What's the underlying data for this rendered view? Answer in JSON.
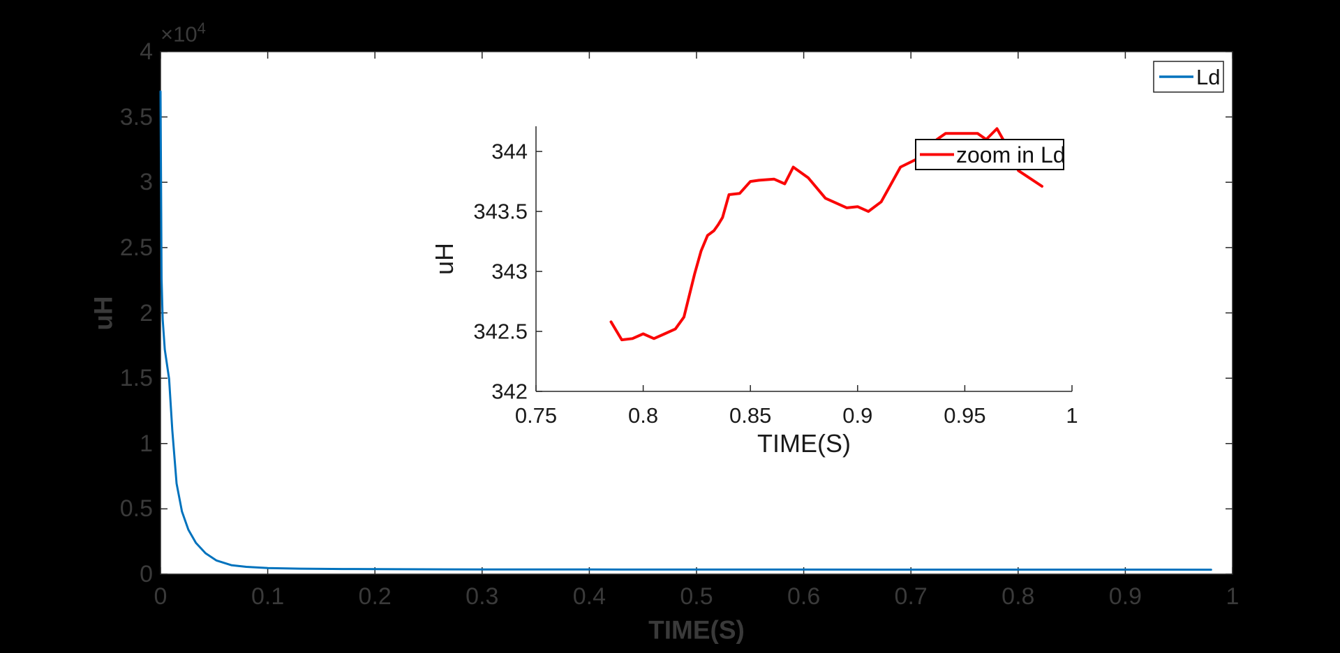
{
  "figure": {
    "background": "#000000",
    "axes_background": "#ffffff",
    "axis_color": "#262626",
    "main_text_color": "#3a3a3a",
    "inset_text_color": "#1a1a1a"
  },
  "main_plot": {
    "xlabel": "TIME(S)",
    "ylabel": "uH",
    "y_multiplier": {
      "base": "×10",
      "exponent": "4"
    },
    "legend": {
      "label": "Ld",
      "line_color": "#0072bd"
    }
  },
  "inset_plot": {
    "xlabel": "TIME(S)",
    "ylabel": "uH",
    "legend": {
      "label": "zoom in Ld",
      "line_color": "#fa0505"
    }
  },
  "chart_data": [
    {
      "type": "line",
      "title": "",
      "xlabel": "TIME(S)",
      "ylabel": "uH",
      "xlim": [
        0,
        1
      ],
      "ylim": [
        0,
        40000
      ],
      "grid": false,
      "legend_position": "northeast",
      "legend": [
        "Ld"
      ],
      "xticks": [
        0,
        0.1,
        0.2,
        0.3,
        0.4,
        0.5,
        0.6,
        0.7,
        0.8,
        0.9,
        1
      ],
      "xtick_labels": [
        "0",
        "0.1",
        "0.2",
        "0.3",
        "0.4",
        "0.5",
        "0.6",
        "0.7",
        "0.8",
        "0.9",
        "1"
      ],
      "yticks": [
        0,
        5000,
        10000,
        15000,
        20000,
        25000,
        30000,
        35000,
        40000
      ],
      "ytick_labels": [
        "0",
        "0.5",
        "1",
        "1.5",
        "2",
        "2.5",
        "3",
        "3.5",
        "4"
      ],
      "ytick_multiplier": "×10^4",
      "series": [
        {
          "name": "Ld",
          "color": "#0072bd",
          "points": [
            [
              0.0,
              36950
            ],
            [
              0.001,
              22600
            ],
            [
              0.002,
              19500
            ],
            [
              0.004,
              17200
            ],
            [
              0.008,
              14950
            ],
            [
              0.011,
              11000
            ],
            [
              0.015,
              6940
            ],
            [
              0.02,
              4800
            ],
            [
              0.026,
              3400
            ],
            [
              0.033,
              2400
            ],
            [
              0.042,
              1600
            ],
            [
              0.052,
              1050
            ],
            [
              0.066,
              690
            ],
            [
              0.08,
              560
            ],
            [
              0.1,
              470
            ],
            [
              0.13,
              420
            ],
            [
              0.17,
              395
            ],
            [
              0.22,
              380
            ],
            [
              0.3,
              365
            ],
            [
              0.4,
              357
            ],
            [
              0.55,
              350
            ],
            [
              0.7,
              347
            ],
            [
              0.85,
              345
            ],
            [
              0.98,
              343.7
            ]
          ]
        }
      ]
    },
    {
      "type": "line",
      "title": "",
      "xlabel": "TIME(S)",
      "ylabel": "uH",
      "xlim": [
        0.75,
        1
      ],
      "ylim": [
        342,
        344.21
      ],
      "grid": false,
      "legend_position": "northeast",
      "legend": [
        "zoom in Ld"
      ],
      "xticks": [
        0.75,
        0.8,
        0.85,
        0.9,
        0.95,
        1
      ],
      "xtick_labels": [
        "0.75",
        "0.8",
        "0.85",
        "0.9",
        "0.95",
        "1"
      ],
      "yticks": [
        342,
        342.5,
        343,
        343.5,
        344
      ],
      "ytick_labels": [
        "342",
        "342.5",
        "343",
        "343.5",
        "344"
      ],
      "series": [
        {
          "name": "zoom in Ld",
          "color": "#fa0505",
          "points": [
            [
              0.785,
              342.58
            ],
            [
              0.79,
              342.43
            ],
            [
              0.795,
              342.44
            ],
            [
              0.8,
              342.48
            ],
            [
              0.805,
              342.44
            ],
            [
              0.81,
              342.48
            ],
            [
              0.815,
              342.52
            ],
            [
              0.819,
              342.62
            ],
            [
              0.824,
              342.98
            ],
            [
              0.827,
              343.17
            ],
            [
              0.83,
              343.3
            ],
            [
              0.833,
              343.34
            ],
            [
              0.835,
              343.39
            ],
            [
              0.837,
              343.45
            ],
            [
              0.84,
              343.64
            ],
            [
              0.845,
              343.65
            ],
            [
              0.85,
              343.75
            ],
            [
              0.854,
              343.76
            ],
            [
              0.861,
              343.77
            ],
            [
              0.866,
              343.73
            ],
            [
              0.87,
              343.87
            ],
            [
              0.877,
              343.78
            ],
            [
              0.885,
              343.61
            ],
            [
              0.895,
              343.53
            ],
            [
              0.9,
              343.54
            ],
            [
              0.905,
              343.5
            ],
            [
              0.911,
              343.58
            ],
            [
              0.92,
              343.87
            ],
            [
              0.928,
              343.94
            ],
            [
              0.937,
              344.1
            ],
            [
              0.941,
              344.15
            ],
            [
              0.956,
              344.15
            ],
            [
              0.96,
              344.1
            ],
            [
              0.965,
              344.19
            ],
            [
              0.971,
              344.0
            ],
            [
              0.975,
              343.84
            ],
            [
              0.986,
              343.71
            ]
          ]
        }
      ]
    }
  ]
}
